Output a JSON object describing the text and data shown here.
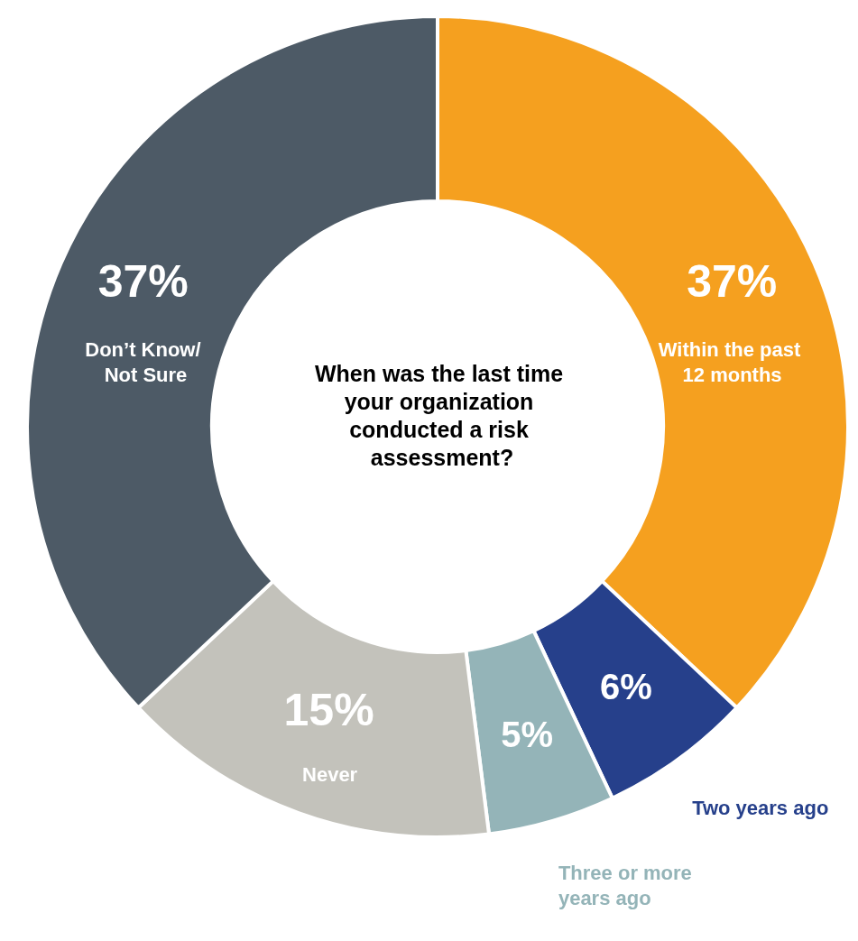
{
  "chart_data": {
    "type": "donut",
    "title": "When was the last time your organization conducted a risk assessment?",
    "categories": [
      "Within the past 12 months",
      "Two years ago",
      "Three or more years ago",
      "Never",
      "Don’t Know/ Not Sure"
    ],
    "values": [
      37,
      6,
      5,
      15,
      37
    ],
    "value_labels": [
      "37%",
      "6%",
      "5%",
      "15%",
      "37%"
    ],
    "colors": [
      "#f5a01f",
      "#26408b",
      "#94b4b8",
      "#c3c2bb",
      "#4d5a66"
    ],
    "legend": false
  }
}
